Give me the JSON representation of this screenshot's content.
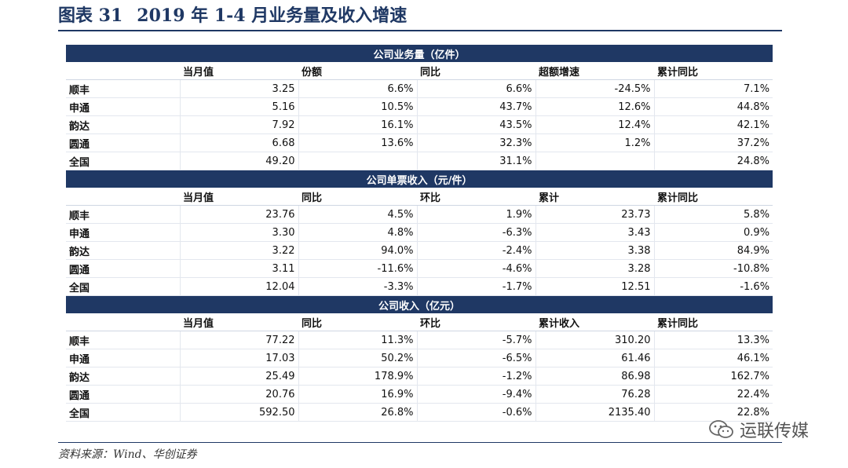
{
  "figure": {
    "label": "图表 31",
    "title": "2019 年 1-4 月业务量及收入增速",
    "source": "资料来源：Wind、华创证券"
  },
  "watermark": {
    "text": "运联传媒"
  },
  "sections": [
    {
      "title": "公司业务量（亿件）",
      "headers": [
        "",
        "当月值",
        "份额",
        "同比",
        "超额增速",
        "累计同比"
      ],
      "rows": [
        [
          "顺丰",
          "3.25",
          "6.6%",
          "6.6%",
          "-24.5%",
          "7.1%"
        ],
        [
          "申通",
          "5.16",
          "10.5%",
          "43.7%",
          "12.6%",
          "44.8%"
        ],
        [
          "韵达",
          "7.92",
          "16.1%",
          "43.5%",
          "12.4%",
          "42.1%"
        ],
        [
          "圆通",
          "6.68",
          "13.6%",
          "32.3%",
          "1.2%",
          "37.2%"
        ],
        [
          "全国",
          "49.20",
          "",
          "31.1%",
          "",
          "24.8%"
        ]
      ]
    },
    {
      "title": "公司单票收入（元/件）",
      "headers": [
        "",
        "当月值",
        "同比",
        "环比",
        "累计",
        "累计同比"
      ],
      "rows": [
        [
          "顺丰",
          "23.76",
          "4.5%",
          "1.9%",
          "23.73",
          "5.8%"
        ],
        [
          "申通",
          "3.30",
          "4.8%",
          "-6.3%",
          "3.43",
          "0.9%"
        ],
        [
          "韵达",
          "3.22",
          "94.0%",
          "-2.4%",
          "3.38",
          "84.9%"
        ],
        [
          "圆通",
          "3.11",
          "-11.6%",
          "-4.6%",
          "3.28",
          "-10.8%"
        ],
        [
          "全国",
          "12.04",
          "-3.3%",
          "-1.7%",
          "12.51",
          "-1.6%"
        ]
      ]
    },
    {
      "title": "公司收入（亿元）",
      "headers": [
        "",
        "当月值",
        "同比",
        "环比",
        "累计收入",
        "累计同比"
      ],
      "rows": [
        [
          "顺丰",
          "77.22",
          "11.3%",
          "-5.7%",
          "310.20",
          "13.3%"
        ],
        [
          "申通",
          "17.03",
          "50.2%",
          "-6.5%",
          "61.46",
          "46.1%"
        ],
        [
          "韵达",
          "25.49",
          "178.9%",
          "-1.2%",
          "86.98",
          "162.7%"
        ],
        [
          "圆通",
          "20.76",
          "16.9%",
          "-9.4%",
          "76.28",
          "22.4%"
        ],
        [
          "全国",
          "592.50",
          "26.8%",
          "-0.6%",
          "2135.40",
          "22.8%"
        ]
      ]
    }
  ]
}
